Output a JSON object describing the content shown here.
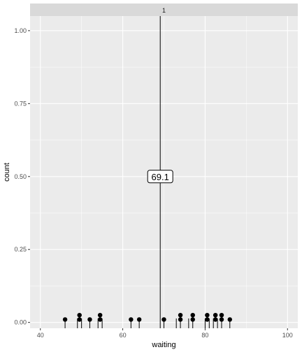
{
  "chart_data": {
    "type": "scatter",
    "facet_label": "1",
    "xlabel": "waiting",
    "ylabel": "count",
    "xlim": [
      37.5,
      102.5
    ],
    "ylim": [
      -0.02,
      1.05
    ],
    "x_ticks": [
      40,
      60,
      80,
      100
    ],
    "x_tick_labels": [
      "40",
      "60",
      "80",
      "100"
    ],
    "y_ticks": [
      0.0,
      0.25,
      0.5,
      0.75,
      1.0
    ],
    "y_tick_labels": [
      "0.00",
      "0.25",
      "0.50",
      "0.75",
      "1.00"
    ],
    "grid": true,
    "dot_radius_units": 0.55,
    "mean_value": 69.1,
    "mean_label": "69.1",
    "mean_label_y": 0.5,
    "points": [
      {
        "x": 46,
        "y": 0.01
      },
      {
        "x": 49.5,
        "y": 0.01
      },
      {
        "x": 49.5,
        "y": 0.025
      },
      {
        "x": 52,
        "y": 0.01
      },
      {
        "x": 54.5,
        "y": 0.01
      },
      {
        "x": 54.5,
        "y": 0.025
      },
      {
        "x": 62,
        "y": 0.01
      },
      {
        "x": 64,
        "y": 0.01
      },
      {
        "x": 70,
        "y": 0.01
      },
      {
        "x": 74,
        "y": 0.01
      },
      {
        "x": 74,
        "y": 0.025
      },
      {
        "x": 77,
        "y": 0.01
      },
      {
        "x": 77,
        "y": 0.025
      },
      {
        "x": 80.5,
        "y": 0.01
      },
      {
        "x": 80.5,
        "y": 0.025
      },
      {
        "x": 82.5,
        "y": 0.01
      },
      {
        "x": 82.5,
        "y": 0.025
      },
      {
        "x": 84,
        "y": 0.01
      },
      {
        "x": 84,
        "y": 0.025
      },
      {
        "x": 86,
        "y": 0.01
      }
    ],
    "rug": [
      46,
      49,
      50,
      52,
      54,
      55,
      62,
      64,
      70,
      73,
      74,
      76,
      77,
      80,
      81,
      82,
      83,
      84,
      86
    ]
  },
  "colors": {
    "panel_bg": "#ebebeb",
    "grid": "#ffffff",
    "strip_bg": "#d9d9d9",
    "points": "#000000"
  }
}
